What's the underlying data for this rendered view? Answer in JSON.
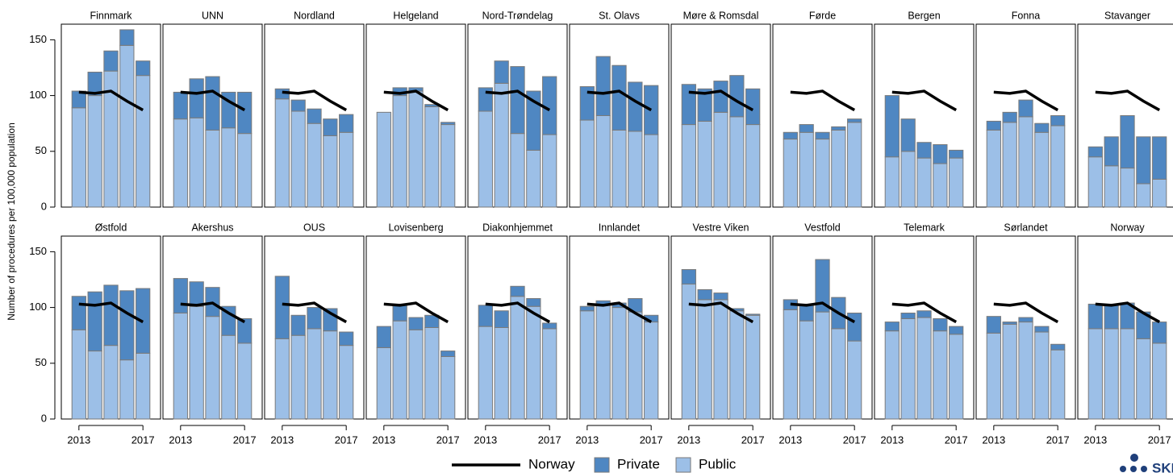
{
  "chart_data": {
    "type": "small-multiples-stacked-bar",
    "ylabel": "Number of procedures per 100,000 population",
    "x": [
      2013,
      2014,
      2015,
      2016,
      2017
    ],
    "xlim": [
      2011.9,
      2018.1
    ],
    "xticks": [
      2013,
      2017
    ],
    "ylim": [
      0,
      164
    ],
    "yticks": [
      0,
      50,
      100,
      150
    ],
    "line": {
      "name": "Norway",
      "color": "#000000",
      "values": [
        103,
        102,
        104,
        95,
        87
      ]
    },
    "series": [
      {
        "name": "Private",
        "color": "#4f87c2"
      },
      {
        "name": "Public",
        "color": "#9cbfe7"
      }
    ],
    "panels": [
      {
        "title": "Finnmark",
        "private": [
          15,
          21,
          18,
          14,
          13
        ],
        "public": [
          89,
          100,
          122,
          145,
          118
        ]
      },
      {
        "title": "UNN",
        "private": [
          24,
          35,
          48,
          32,
          37
        ],
        "public": [
          79,
          80,
          69,
          71,
          66
        ]
      },
      {
        "title": "Nordland",
        "private": [
          9,
          10,
          13,
          15,
          16
        ],
        "public": [
          97,
          86,
          75,
          64,
          67
        ]
      },
      {
        "title": "Helgeland",
        "private": [
          0,
          7,
          3,
          2,
          2
        ],
        "public": [
          85,
          100,
          104,
          90,
          74
        ]
      },
      {
        "title": "Nord-Trøndelag",
        "private": [
          21,
          20,
          60,
          53,
          52
        ],
        "public": [
          86,
          111,
          66,
          51,
          65
        ]
      },
      {
        "title": "St. Olavs",
        "private": [
          30,
          53,
          58,
          44,
          44
        ],
        "public": [
          78,
          82,
          69,
          68,
          65
        ]
      },
      {
        "title": "Møre & Romsdal",
        "private": [
          36,
          29,
          28,
          37,
          32
        ],
        "public": [
          74,
          77,
          85,
          81,
          74
        ]
      },
      {
        "title": "Førde",
        "private": [
          6,
          7,
          6,
          3,
          3
        ],
        "public": [
          61,
          67,
          61,
          69,
          76
        ]
      },
      {
        "title": "Bergen",
        "private": [
          55,
          29,
          14,
          17,
          7
        ],
        "public": [
          45,
          50,
          44,
          39,
          44
        ]
      },
      {
        "title": "Fonna",
        "private": [
          8,
          9,
          15,
          8,
          9
        ],
        "public": [
          69,
          76,
          81,
          67,
          73
        ]
      },
      {
        "title": "Stavanger",
        "private": [
          9,
          26,
          47,
          42,
          38
        ],
        "public": [
          45,
          37,
          35,
          21,
          25
        ]
      },
      {
        "title": "Østfold",
        "private": [
          30,
          53,
          54,
          62,
          58
        ],
        "public": [
          80,
          61,
          66,
          53,
          59
        ]
      },
      {
        "title": "Akershus",
        "private": [
          31,
          22,
          26,
          26,
          22
        ],
        "public": [
          95,
          101,
          92,
          75,
          68
        ]
      },
      {
        "title": "OUS",
        "private": [
          56,
          18,
          19,
          20,
          12
        ],
        "public": [
          72,
          75,
          81,
          79,
          66
        ]
      },
      {
        "title": "Lovisenberg",
        "private": [
          19,
          15,
          11,
          11,
          5
        ],
        "public": [
          64,
          88,
          80,
          82,
          56
        ]
      },
      {
        "title": "Diakonhjemmet",
        "private": [
          19,
          15,
          9,
          7,
          5
        ],
        "public": [
          83,
          82,
          110,
          101,
          81
        ]
      },
      {
        "title": "Innlandet",
        "private": [
          4,
          3,
          4,
          12,
          6
        ],
        "public": [
          97,
          103,
          100,
          96,
          87
        ]
      },
      {
        "title": "Vestre Viken",
        "private": [
          13,
          9,
          6,
          2,
          1
        ],
        "public": [
          121,
          107,
          107,
          97,
          93
        ]
      },
      {
        "title": "Vestfold",
        "private": [
          9,
          15,
          47,
          28,
          25
        ],
        "public": [
          98,
          88,
          96,
          81,
          70
        ]
      },
      {
        "title": "Telemark",
        "private": [
          8,
          5,
          6,
          11,
          7
        ],
        "public": [
          79,
          90,
          91,
          79,
          76
        ]
      },
      {
        "title": "Sørlandet",
        "private": [
          15,
          2,
          4,
          5,
          5
        ],
        "public": [
          77,
          85,
          87,
          78,
          62
        ]
      },
      {
        "title": "Norway",
        "private": [
          22,
          22,
          23,
          24,
          19
        ],
        "public": [
          81,
          81,
          81,
          72,
          68
        ]
      }
    ],
    "logo": "SKDE"
  }
}
